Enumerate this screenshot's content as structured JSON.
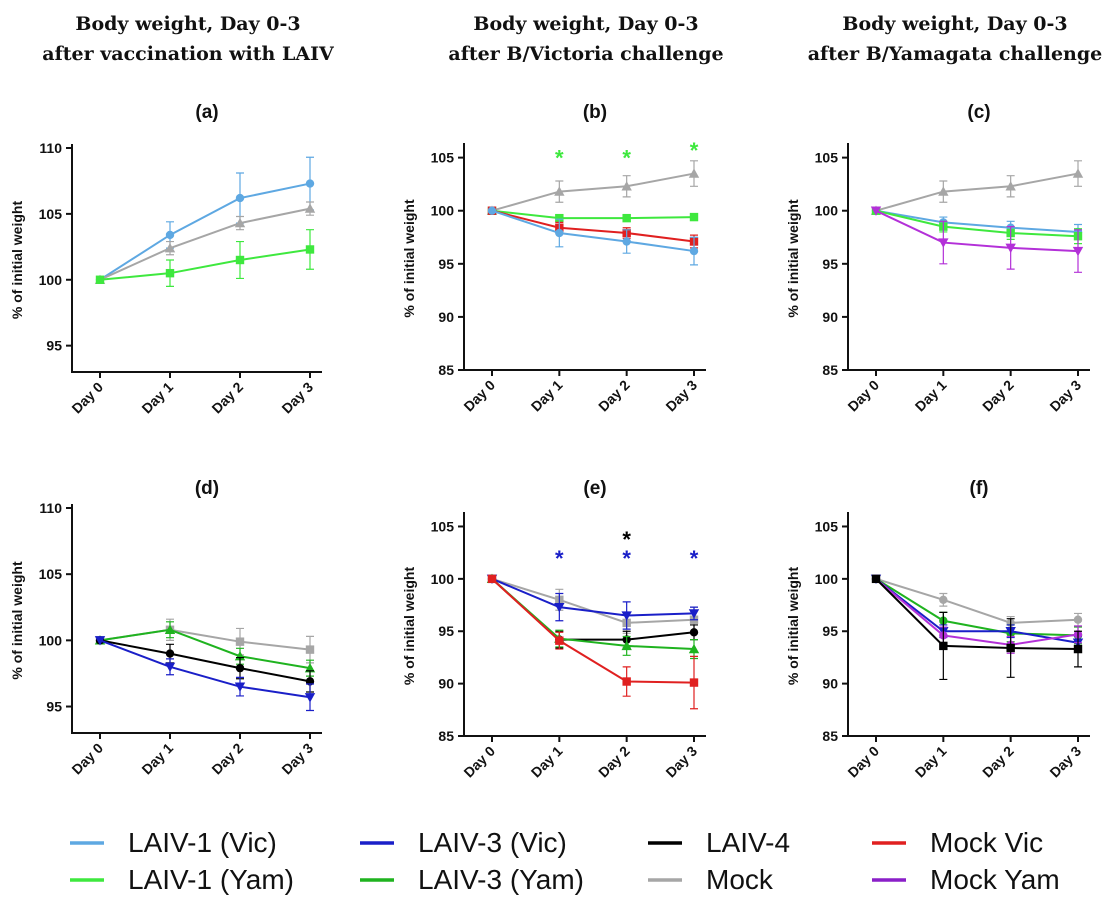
{
  "column_titles": [
    [
      "Body weight, Day 0-3",
      "after vaccination with LAIV"
    ],
    [
      "Body weight, Day 0-3",
      "after B/Victoria challenge"
    ],
    [
      "Body weight, Day 0-3",
      "after B/Yamagata challenge"
    ]
  ],
  "legend": [
    {
      "label": "LAIV-1 (Vic)",
      "color": "#5ea8e2"
    },
    {
      "label": "LAIV-3 (Vic)",
      "color": "#1a1fc8"
    },
    {
      "label": "LAIV-4",
      "color": "#000000"
    },
    {
      "label": "Mock Vic",
      "color": "#e02020"
    },
    {
      "label": "LAIV-1 (Yam)",
      "color": "#3ee83e"
    },
    {
      "label": "LAIV-3 (Yam)",
      "color": "#1fb31f"
    },
    {
      "label": "Mock",
      "color": "#a6a6a6"
    },
    {
      "label": "Mock Yam",
      "color": "#8a1fc8"
    }
  ],
  "chart_data": [
    {
      "panel": "(a)",
      "type": "line",
      "ylabel": "% of initial weight",
      "categories": [
        "Day 0",
        "Day 1",
        "Day 2",
        "Day 3"
      ],
      "ylim": [
        93,
        110
      ],
      "yticks": [
        95,
        100,
        105,
        110
      ],
      "series": [
        {
          "name": "LAIV-1 (Vic)",
          "color": "#5ea8e2",
          "marker": "circle",
          "values": [
            100,
            103.4,
            106.2,
            107.3
          ],
          "err": [
            0,
            1.0,
            1.9,
            2.0
          ]
        },
        {
          "name": "Mock",
          "color": "#a6a6a6",
          "marker": "triangle",
          "values": [
            100,
            102.4,
            104.3,
            105.4
          ],
          "err": [
            0,
            0.5,
            0.5,
            0.5
          ]
        },
        {
          "name": "LAIV-1 (Yam)",
          "color": "#3ee83e",
          "marker": "square",
          "values": [
            100,
            100.5,
            101.5,
            102.3
          ],
          "err": [
            0,
            1.0,
            1.4,
            1.5
          ]
        }
      ],
      "stars": []
    },
    {
      "panel": "(b)",
      "type": "line",
      "ylabel": "% of initial weight",
      "categories": [
        "Day 0",
        "Day 1",
        "Day 2",
        "Day 3"
      ],
      "ylim": [
        85,
        106
      ],
      "yticks": [
        85,
        90,
        95,
        100,
        105
      ],
      "series": [
        {
          "name": "Mock",
          "color": "#a6a6a6",
          "marker": "triangle",
          "values": [
            100,
            101.8,
            102.3,
            103.5
          ],
          "err": [
            0,
            1.0,
            1.0,
            1.2
          ]
        },
        {
          "name": "LAIV-1 (Yam)",
          "color": "#3ee83e",
          "marker": "square",
          "values": [
            100,
            99.3,
            99.3,
            99.4
          ],
          "err": [
            0,
            0.3,
            0.3,
            0.3
          ]
        },
        {
          "name": "Mock Vic",
          "color": "#e02020",
          "marker": "square",
          "values": [
            100,
            98.4,
            97.9,
            97.1
          ],
          "err": [
            0,
            0.5,
            0.5,
            0.6
          ]
        },
        {
          "name": "LAIV-1 (Vic)",
          "color": "#5ea8e2",
          "marker": "circle",
          "values": [
            100,
            97.9,
            97.1,
            96.2
          ],
          "err": [
            0,
            1.3,
            1.1,
            1.3
          ]
        }
      ],
      "stars": [
        {
          "x": 1,
          "y": 105.1,
          "color": "#3ee83e"
        },
        {
          "x": 2,
          "y": 105.1,
          "color": "#3ee83e"
        },
        {
          "x": 3,
          "y": 105.8,
          "color": "#3ee83e"
        }
      ]
    },
    {
      "panel": "(c)",
      "type": "line",
      "ylabel": "% of initial weight",
      "categories": [
        "Day 0",
        "Day 1",
        "Day 2",
        "Day 3"
      ],
      "ylim": [
        85,
        106
      ],
      "yticks": [
        85,
        90,
        95,
        100,
        105
      ],
      "series": [
        {
          "name": "Mock",
          "color": "#a6a6a6",
          "marker": "triangle",
          "values": [
            100,
            101.8,
            102.3,
            103.5
          ],
          "err": [
            0,
            1.0,
            1.0,
            1.2
          ]
        },
        {
          "name": "LAIV-1 (Vic)",
          "color": "#5ea8e2",
          "marker": "circle",
          "values": [
            100,
            98.9,
            98.4,
            98.0
          ],
          "err": [
            0,
            0.5,
            0.6,
            0.7
          ]
        },
        {
          "name": "LAIV-1 (Yam)",
          "color": "#3ee83e",
          "marker": "square",
          "values": [
            100,
            98.5,
            97.9,
            97.6
          ],
          "err": [
            0,
            0.5,
            0.6,
            0.7
          ]
        },
        {
          "name": "Mock Yam",
          "color": "#b330d8",
          "marker": "tri-down",
          "values": [
            100,
            97.0,
            96.5,
            96.2
          ],
          "err": [
            0,
            2.0,
            2.0,
            2.0
          ]
        }
      ],
      "stars": []
    },
    {
      "panel": "(d)",
      "type": "line",
      "ylabel": "% of initial weight",
      "categories": [
        "Day 0",
        "Day 1",
        "Day 2",
        "Day 3"
      ],
      "ylim": [
        93,
        110
      ],
      "yticks": [
        95,
        100,
        105,
        110
      ],
      "series": [
        {
          "name": "Mock",
          "color": "#a6a6a6",
          "marker": "square",
          "values": [
            100,
            100.8,
            99.9,
            99.3
          ],
          "err": [
            0,
            0.8,
            1.0,
            1.0
          ]
        },
        {
          "name": "LAIV-3 (Yam)",
          "color": "#1fb31f",
          "marker": "triangle",
          "values": [
            100,
            100.8,
            98.8,
            97.9
          ],
          "err": [
            0,
            0.6,
            0.6,
            0.6
          ]
        },
        {
          "name": "LAIV-4",
          "color": "#000000",
          "marker": "circle",
          "values": [
            100,
            99.0,
            97.9,
            96.9
          ],
          "err": [
            0,
            0.7,
            0.8,
            0.8
          ]
        },
        {
          "name": "LAIV-3 (Vic)",
          "color": "#1a1fc8",
          "marker": "tri-down",
          "values": [
            100,
            98.0,
            96.5,
            95.7
          ],
          "err": [
            0,
            0.6,
            0.7,
            1.0
          ]
        }
      ],
      "stars": []
    },
    {
      "panel": "(e)",
      "type": "line",
      "ylabel": "% of initial weight",
      "categories": [
        "Day 0",
        "Day 1",
        "Day 2",
        "Day 3"
      ],
      "ylim": [
        85,
        106
      ],
      "yticks": [
        85,
        90,
        95,
        100,
        105
      ],
      "series": [
        {
          "name": "Mock",
          "color": "#a6a6a6",
          "marker": "square",
          "values": [
            100,
            98.0,
            95.8,
            96.1
          ],
          "err": [
            0,
            1.0,
            1.0,
            1.2
          ]
        },
        {
          "name": "LAIV-3 (Vic)",
          "color": "#1a1fc8",
          "marker": "tri-down",
          "values": [
            100,
            97.3,
            96.5,
            96.7
          ],
          "err": [
            0,
            1.3,
            1.3,
            0.6
          ]
        },
        {
          "name": "LAIV-4",
          "color": "#000000",
          "marker": "circle",
          "values": [
            100,
            94.2,
            94.2,
            94.9
          ],
          "err": [
            0,
            0.8,
            0.8,
            0.7
          ]
        },
        {
          "name": "LAIV-3 (Yam)",
          "color": "#1fb31f",
          "marker": "triangle",
          "values": [
            100,
            94.3,
            93.6,
            93.3
          ],
          "err": [
            0,
            0.8,
            0.9,
            0.9
          ]
        },
        {
          "name": "Mock Vic",
          "color": "#e02020",
          "marker": "square",
          "values": [
            100,
            94.1,
            90.2,
            90.1
          ],
          "err": [
            0,
            0.8,
            1.4,
            2.5
          ]
        }
      ],
      "stars": [
        {
          "x": 1,
          "y": 102.1,
          "color": "#1a1fc8"
        },
        {
          "x": 2,
          "y": 102.1,
          "color": "#1a1fc8"
        },
        {
          "x": 2,
          "y": 103.9,
          "color": "#000000"
        },
        {
          "x": 3,
          "y": 102.1,
          "color": "#1a1fc8"
        }
      ]
    },
    {
      "panel": "(f)",
      "type": "line",
      "ylabel": "% of initial weight",
      "categories": [
        "Day 0",
        "Day 1",
        "Day 2",
        "Day 3"
      ],
      "ylim": [
        85,
        106
      ],
      "yticks": [
        85,
        90,
        95,
        100,
        105
      ],
      "series": [
        {
          "name": "Mock",
          "color": "#a6a6a6",
          "marker": "circle",
          "values": [
            100,
            98.0,
            95.8,
            96.1
          ],
          "err": [
            0,
            0.6,
            0.6,
            0.6
          ]
        },
        {
          "name": "LAIV-3 (Yam)",
          "color": "#1fb31f",
          "marker": "circle",
          "values": [
            100,
            96.0,
            94.8,
            94.6
          ],
          "err": [
            0,
            0.8,
            0.8,
            0.8
          ]
        },
        {
          "name": "LAIV-3 (Vic)",
          "color": "#1a1fc8",
          "marker": "tri-down",
          "values": [
            100,
            95.0,
            95.0,
            93.9
          ],
          "err": [
            0,
            0.6,
            0.6,
            0.6
          ]
        },
        {
          "name": "Mock Yam",
          "color": "#b330d8",
          "marker": "circle",
          "values": [
            100,
            94.6,
            93.7,
            94.7
          ],
          "err": [
            0,
            0.8,
            0.8,
            0.8
          ]
        },
        {
          "name": "LAIV-4",
          "color": "#000000",
          "marker": "square",
          "values": [
            100,
            93.6,
            93.4,
            93.3
          ],
          "err": [
            0,
            3.2,
            2.8,
            1.7
          ]
        }
      ],
      "stars": []
    }
  ]
}
